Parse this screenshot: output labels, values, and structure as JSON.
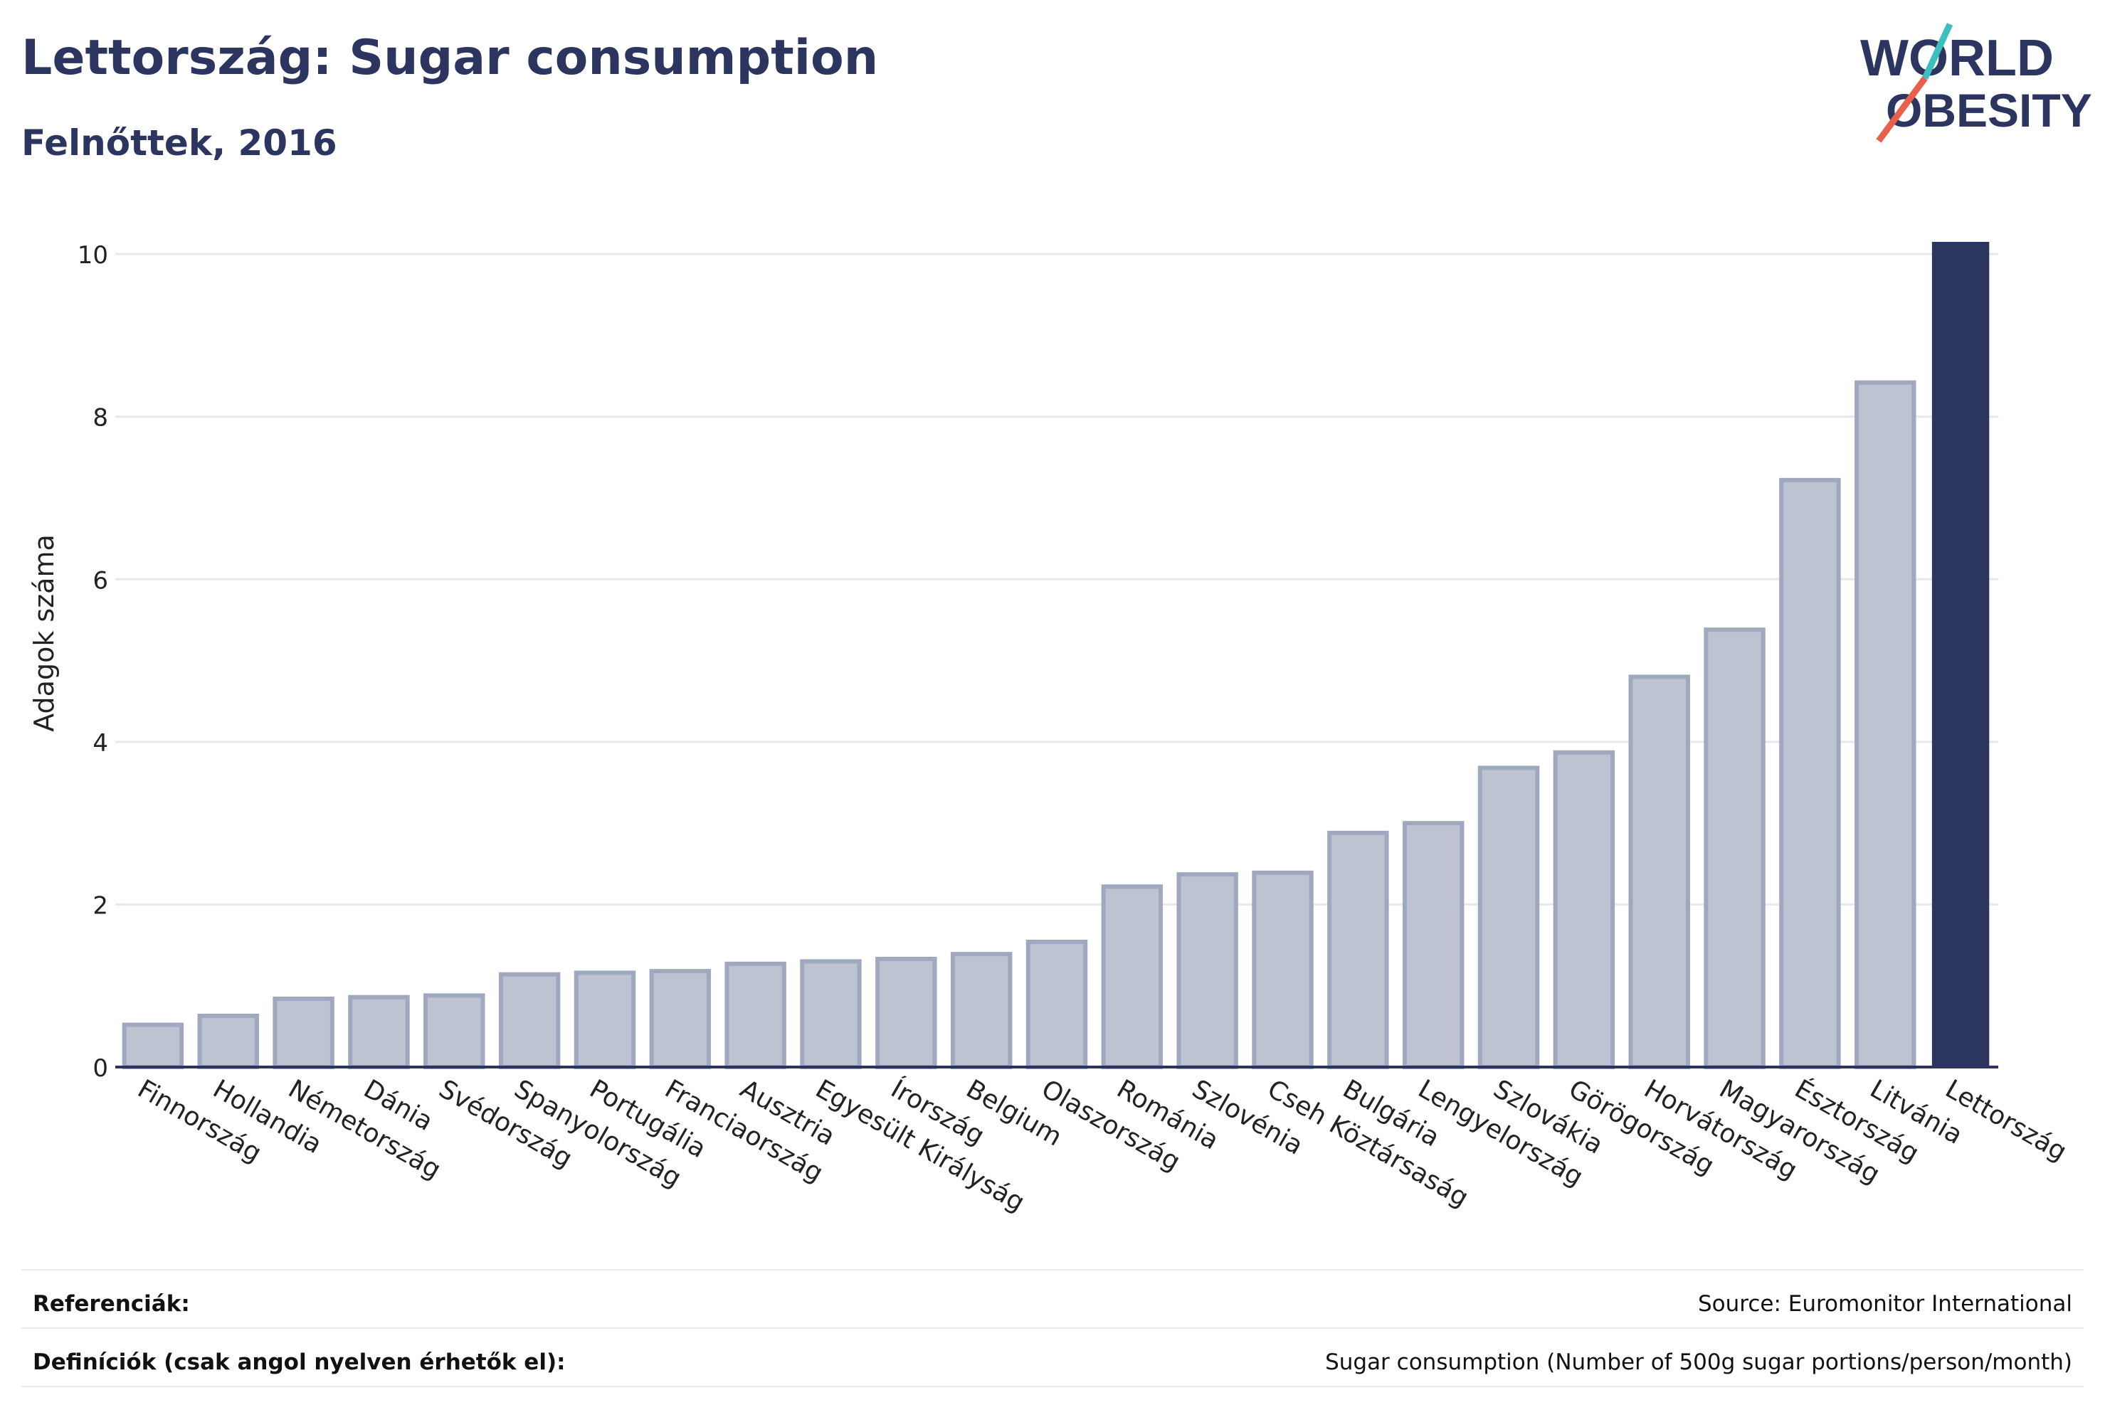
{
  "header": {
    "title": "Lettország: Sugar consumption",
    "subtitle": "Felnőttek, 2016"
  },
  "logo": {
    "line1": "WORLD",
    "line2": "OBESITY",
    "colors": {
      "text": "#2b3560",
      "slash_top": "#3bbfbf",
      "slash_bottom": "#e8604c"
    }
  },
  "chart_data": {
    "type": "bar",
    "ylabel": "Adagok száma",
    "xlabel": "",
    "ylim": [
      0,
      10.5
    ],
    "yticks": [
      0,
      2,
      4,
      6,
      8,
      10
    ],
    "grid": true,
    "highlight": "Lettország",
    "colors": {
      "bar": "#bec3d1",
      "bar_border": "#a0a8bf",
      "highlight": "#2b3560",
      "grid": "#e6e8ef"
    },
    "categories": [
      "Finnország",
      "Hollandia",
      "Németország",
      "Dánia",
      "Svédország",
      "Spanyolország",
      "Portugália",
      "Franciaország",
      "Ausztria",
      "Egyesült Királyság",
      "Írország",
      "Belgium",
      "Olaszország",
      "Románia",
      "Szlovénia",
      "Cseh Köztársaság",
      "Bulgária",
      "Lengyelország",
      "Szlovákia",
      "Görögország",
      "Horvátország",
      "Magyarország",
      "Észtország",
      "Litvánia",
      "Lettország"
    ],
    "values": [
      0.52,
      0.63,
      0.84,
      0.86,
      0.88,
      1.14,
      1.16,
      1.18,
      1.27,
      1.3,
      1.33,
      1.39,
      1.54,
      2.22,
      2.37,
      2.39,
      2.88,
      3.0,
      3.68,
      3.87,
      4.8,
      5.38,
      7.22,
      8.42,
      10.15
    ]
  },
  "footer": {
    "references_label": "Referenciák:",
    "references_value": "Source: Euromonitor International",
    "definitions_label": "Definíciók (csak angol nyelven érhetők el):",
    "definitions_value": "Sugar consumption (Number of 500g sugar portions/person/month)"
  }
}
